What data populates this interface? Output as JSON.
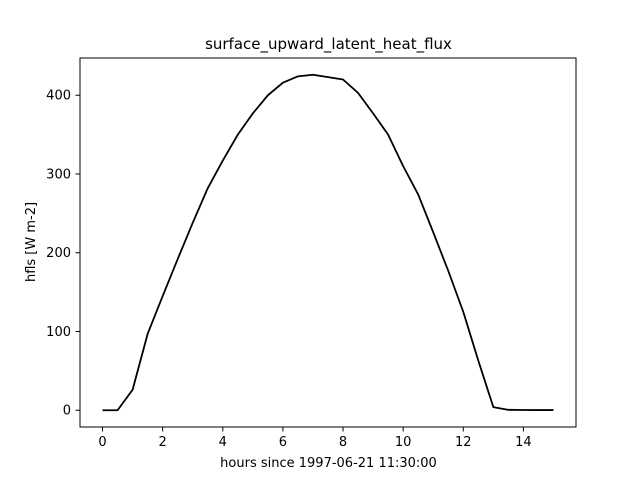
{
  "chart_data": {
    "type": "line",
    "title": "surface_upward_latent_heat_flux",
    "xlabel": "hours since 1997-06-21 11:30:00",
    "ylabel": "hfls [W m-2]",
    "xlim": [
      -0.75,
      15.75
    ],
    "ylim": [
      -21.3,
      447.3
    ],
    "xticks": [
      0,
      2,
      4,
      6,
      8,
      10,
      12,
      14
    ],
    "yticks": [
      0,
      100,
      200,
      300,
      400
    ],
    "grid": false,
    "line_color": "#000000",
    "series": [
      {
        "x": [
          0,
          0.5,
          1,
          1.5,
          2,
          2.5,
          3,
          3.5,
          4,
          4.5,
          5,
          5.5,
          6,
          6.5,
          7,
          7.5,
          8,
          8.5,
          9,
          9.5,
          10,
          10.5,
          11,
          11.5,
          12,
          12.5,
          13,
          13.5,
          14,
          14.5,
          15
        ],
        "y": [
          0,
          0,
          26,
          97,
          145,
          192,
          238,
          282,
          317,
          350,
          377,
          400,
          416,
          424,
          426,
          423,
          420,
          403,
          377,
          350,
          310,
          274,
          226,
          177,
          125,
          63,
          4,
          0.5,
          0.3,
          0.2,
          0.2
        ]
      }
    ]
  }
}
